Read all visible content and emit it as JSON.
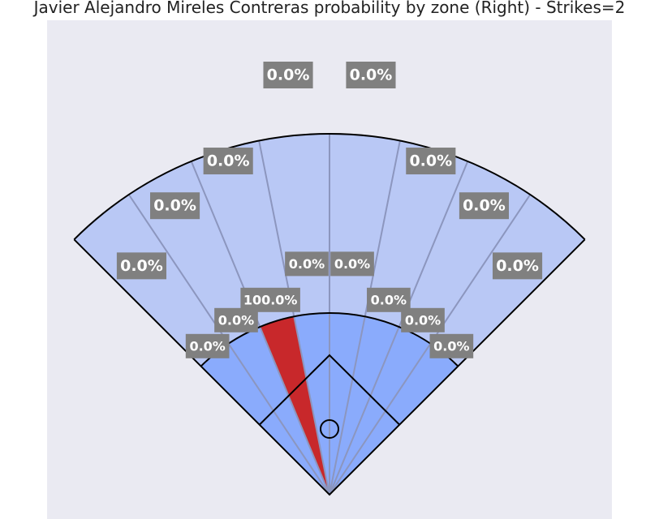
{
  "chart_data": {
    "type": "spray-chart",
    "title": "Javier Alejandro Mireles Contreras probability by zone (Right) - Strikes=2",
    "colors": {
      "background": "#eaeaf2",
      "outfield": "#b9c8f5",
      "infield": "#8aabfc",
      "highlight": "#c8282b",
      "spoke": "#8c96be",
      "outline": "#000000",
      "label_box": "#808080"
    },
    "outfield_zones": [
      {
        "zone": 1,
        "value": 0.0,
        "label": "0.0%"
      },
      {
        "zone": 2,
        "value": 0.0,
        "label": "0.0%"
      },
      {
        "zone": 3,
        "value": 0.0,
        "label": "0.0%"
      },
      {
        "zone": 4,
        "value": 0.0,
        "label": "0.0%"
      },
      {
        "zone": 5,
        "value": 0.0,
        "label": "0.0%"
      },
      {
        "zone": 6,
        "value": 0.0,
        "label": "0.0%"
      },
      {
        "zone": 7,
        "value": 0.0,
        "label": "0.0%"
      },
      {
        "zone": 8,
        "value": 0.0,
        "label": "0.0%"
      }
    ],
    "infield_zones": [
      {
        "zone": 1,
        "value": 0.0,
        "label": "0.0%"
      },
      {
        "zone": 2,
        "value": 0.0,
        "label": "0.0%"
      },
      {
        "zone": 3,
        "value": 100.0,
        "label": "100.0%"
      },
      {
        "zone": 4,
        "value": 0.0,
        "label": "0.0%"
      },
      {
        "zone": 5,
        "value": 0.0,
        "label": "0.0%"
      },
      {
        "zone": 6,
        "value": 0.0,
        "label": "0.0%"
      },
      {
        "zone": 7,
        "value": 0.0,
        "label": "0.0%"
      },
      {
        "zone": 8,
        "value": 0.0,
        "label": "0.0%"
      }
    ]
  }
}
